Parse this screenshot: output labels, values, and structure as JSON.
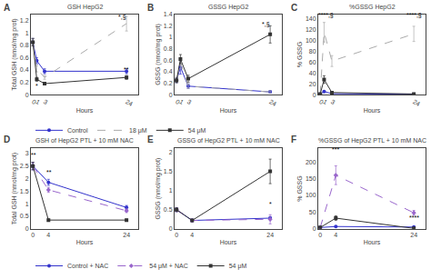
{
  "chart_data": [
    {
      "type": "line",
      "panel_label": "A",
      "title": "GSH HepG2",
      "x_label": "Hours",
      "y_label": "Total GSH (nmol/mg prot)",
      "x": [
        0,
        1,
        3,
        24
      ],
      "xlim": [
        -0.5,
        27
      ],
      "xticks": [
        0,
        1,
        3,
        24
      ],
      "ylim": [
        0,
        1.3
      ],
      "yticks": [
        0,
        0.2,
        0.4,
        0.6,
        0.8,
        1,
        1.2
      ],
      "grid": false,
      "series": [
        {
          "name": "Control",
          "color": "#3333cc",
          "marker": "circle",
          "line_style": "solid",
          "values": [
            0.85,
            0.55,
            0.38,
            0.38
          ],
          "errors": [
            0.06,
            0.05,
            0.04,
            0.04
          ]
        },
        {
          "name": "18 μM",
          "color": "#aaaaaa",
          "marker": "none",
          "line_style": "dashed",
          "values": [
            0.85,
            0.42,
            0.28,
            1.15
          ],
          "errors": [
            0.06,
            0.05,
            0.03,
            0.12
          ]
        },
        {
          "name": "54 μM",
          "color": "#333333",
          "marker": "square",
          "line_style": "solid",
          "values": [
            0.85,
            0.25,
            0.18,
            0.28
          ],
          "errors": [
            0.06,
            0.03,
            0.02,
            0.03
          ]
        }
      ],
      "annotations": [
        {
          "x": 23,
          "y": 1.18,
          "text": "*,§"
        },
        {
          "x": 1,
          "y": 0.06,
          "text": "*"
        },
        {
          "x": 24,
          "y": 0.33,
          "text": "**"
        }
      ]
    },
    {
      "type": "line",
      "panel_label": "B",
      "title": "GSSG HepG2",
      "x_label": "Hours",
      "y_label": "GSSG (nmol/mg prot)",
      "x": [
        0,
        1,
        3,
        24
      ],
      "xlim": [
        -0.5,
        27
      ],
      "xticks": [
        0,
        1,
        3,
        24
      ],
      "ylim": [
        0,
        1.4
      ],
      "yticks": [
        0,
        0.2,
        0.4,
        0.6,
        0.8,
        1,
        1.2,
        1.4
      ],
      "grid": false,
      "series": [
        {
          "name": "Control",
          "color": "#3333cc",
          "marker": "circle",
          "line_style": "solid",
          "values": [
            0.25,
            0.48,
            0.15,
            0.05
          ],
          "errors": [
            0.04,
            0.12,
            0.04,
            0.02
          ]
        },
        {
          "name": "18 μM",
          "color": "#aaaaaa",
          "marker": "none",
          "line_style": "dashed",
          "values": [
            0.25,
            0.55,
            0.15,
            0.05
          ],
          "errors": [
            0.04,
            0.1,
            0.04,
            0.02
          ]
        },
        {
          "name": "54 μM",
          "color": "#333333",
          "marker": "square",
          "line_style": "solid",
          "values": [
            0.25,
            0.62,
            0.28,
            1.05
          ],
          "errors": [
            0.04,
            0.08,
            0.06,
            0.15
          ]
        }
      ],
      "annotations": [
        {
          "x": 23,
          "y": 1.15,
          "text": "*,§"
        }
      ]
    },
    {
      "type": "line",
      "panel_label": "C",
      "title": "%GSSG HepG2",
      "x_label": "Hours",
      "y_label": "% GSSG",
      "x": [
        0,
        1,
        3,
        24
      ],
      "xlim": [
        -0.5,
        27
      ],
      "xticks": [
        0,
        1,
        3,
        24
      ],
      "ylim": [
        0,
        148
      ],
      "yticks": [
        0,
        20,
        40,
        60,
        80,
        100,
        120,
        140
      ],
      "grid": false,
      "series": [
        {
          "name": "Control",
          "color": "#3333cc",
          "marker": "circle",
          "line_style": "solid",
          "values": [
            1.5,
            6.0,
            2.0,
            1.0
          ],
          "errors": [
            0.5,
            1.5,
            0.5,
            0.3
          ]
        },
        {
          "name": "18 μM",
          "color": "#aaaaaa",
          "marker": "none",
          "line_style": "dashed",
          "values": [
            1.5,
            115.0,
            62.0,
            112.0
          ],
          "errors": [
            0.5,
            18.0,
            10.0,
            14.0
          ]
        },
        {
          "name": "54 μM",
          "color": "#333333",
          "marker": "square",
          "line_style": "solid",
          "values": [
            1.5,
            28.0,
            4.0,
            1.5
          ],
          "errors": [
            0.5,
            7.0,
            1.0,
            0.4
          ]
        }
      ],
      "annotations": [
        {
          "x": 1.5,
          "y": 138,
          "text": "****,§"
        },
        {
          "x": 24,
          "y": 138,
          "text": "****,§"
        }
      ]
    },
    {
      "type": "line",
      "panel_label": "D",
      "title": "GSH of HepG2 PTL + 10 mM NAC",
      "x_label": "Hours",
      "y_label": "Total GSH (nmol/mg prot)",
      "x": [
        0,
        4,
        24
      ],
      "xlim": [
        -0.5,
        27
      ],
      "xticks": [
        0,
        4,
        24
      ],
      "ylim": [
        0,
        3.2
      ],
      "yticks": [
        0,
        0.5,
        1,
        1.5,
        2,
        2.5,
        3
      ],
      "grid": false,
      "series": [
        {
          "name": "Control + NAC",
          "color": "#3333cc",
          "marker": "circle",
          "line_style": "solid",
          "values": [
            2.5,
            1.85,
            0.85
          ],
          "errors": [
            0.15,
            0.12,
            0.08
          ]
        },
        {
          "name": "54 μM + NAC",
          "color": "#9966cc",
          "marker": "diamond",
          "line_style": "dashed",
          "values": [
            2.5,
            1.55,
            0.72
          ],
          "errors": [
            0.15,
            0.1,
            0.07
          ]
        },
        {
          "name": "54 μM",
          "color": "#333333",
          "marker": "square",
          "line_style": "solid",
          "values": [
            2.5,
            0.35,
            0.35
          ],
          "errors": [
            0.15,
            0.04,
            0.04
          ]
        }
      ],
      "annotations": [
        {
          "x": 0.2,
          "y": 2.75,
          "text": "**"
        },
        {
          "x": 4.2,
          "y": 2.05,
          "text": "**"
        }
      ]
    },
    {
      "type": "line",
      "panel_label": "E",
      "title": "GSSG of HepG2 PTL + 10 mM NAC",
      "x_label": "Hours",
      "y_label": "GSSG (nmol/mg prot)",
      "x": [
        0,
        4,
        24
      ],
      "xlim": [
        -0.5,
        27
      ],
      "xticks": [
        0,
        4,
        24
      ],
      "ylim": [
        0,
        2.1
      ],
      "yticks": [
        0,
        0.5,
        1,
        1.5,
        2
      ],
      "grid": false,
      "series": [
        {
          "name": "Control + NAC",
          "color": "#3333cc",
          "marker": "circle",
          "line_style": "solid",
          "values": [
            0.5,
            0.22,
            0.28
          ],
          "errors": [
            0.05,
            0.03,
            0.04
          ]
        },
        {
          "name": "54 μM + NAC",
          "color": "#9966cc",
          "marker": "diamond",
          "line_style": "dashed",
          "values": [
            0.5,
            0.22,
            0.25
          ],
          "errors": [
            0.05,
            0.03,
            0.12
          ]
        },
        {
          "name": "54 μM",
          "color": "#333333",
          "marker": "square",
          "line_style": "solid",
          "values": [
            0.5,
            0.22,
            1.5
          ],
          "errors": [
            0.05,
            0.03,
            0.32
          ]
        }
      ],
      "annotations": [
        {
          "x": 24,
          "y": 0.52,
          "text": "*"
        }
      ]
    },
    {
      "type": "line",
      "panel_label": "F",
      "title": "%GSSG of HepG2 PTL + 10 mM NAC",
      "x_label": "Hours",
      "y_label": "% GSSG",
      "x": [
        0,
        4,
        24
      ],
      "xlim": [
        -0.5,
        27
      ],
      "xticks": [
        0,
        4,
        24
      ],
      "ylim": [
        0,
        240
      ],
      "yticks": [
        0,
        50,
        100,
        150,
        200
      ],
      "grid": false,
      "series": [
        {
          "name": "Control + NAC",
          "color": "#3333cc",
          "marker": "circle",
          "line_style": "solid",
          "values": [
            4.0,
            7.0,
            5.5
          ],
          "errors": [
            1.0,
            1.2,
            1.0
          ]
        },
        {
          "name": "54 μM + NAC",
          "color": "#9966cc",
          "marker": "diamond",
          "line_style": "dashed",
          "values": [
            4.0,
            160.0,
            48.0
          ],
          "errors": [
            1.0,
            28.0,
            7.0
          ]
        },
        {
          "name": "54 μM",
          "color": "#333333",
          "marker": "square",
          "line_style": "solid",
          "values": [
            4.0,
            32.0,
            1.5
          ],
          "errors": [
            1.0,
            7.0,
            0.4
          ]
        }
      ],
      "annotations": [
        {
          "x": 4,
          "y": 222,
          "text": "***"
        },
        {
          "x": 24,
          "y": 18,
          "text": "****"
        }
      ]
    }
  ]
}
